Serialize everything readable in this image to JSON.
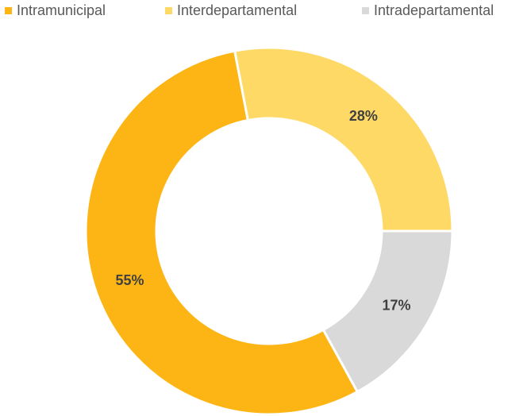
{
  "chart_data": {
    "type": "donut",
    "categories": [
      "Intramunicipal",
      "Interdepartamental",
      "Intradepartamental"
    ],
    "values": [
      55,
      28,
      17
    ],
    "value_labels": [
      "55%",
      "28%",
      "17%"
    ],
    "colors": [
      "#FDB515",
      "#FFD966",
      "#D9D9D9"
    ],
    "legend": "top"
  }
}
